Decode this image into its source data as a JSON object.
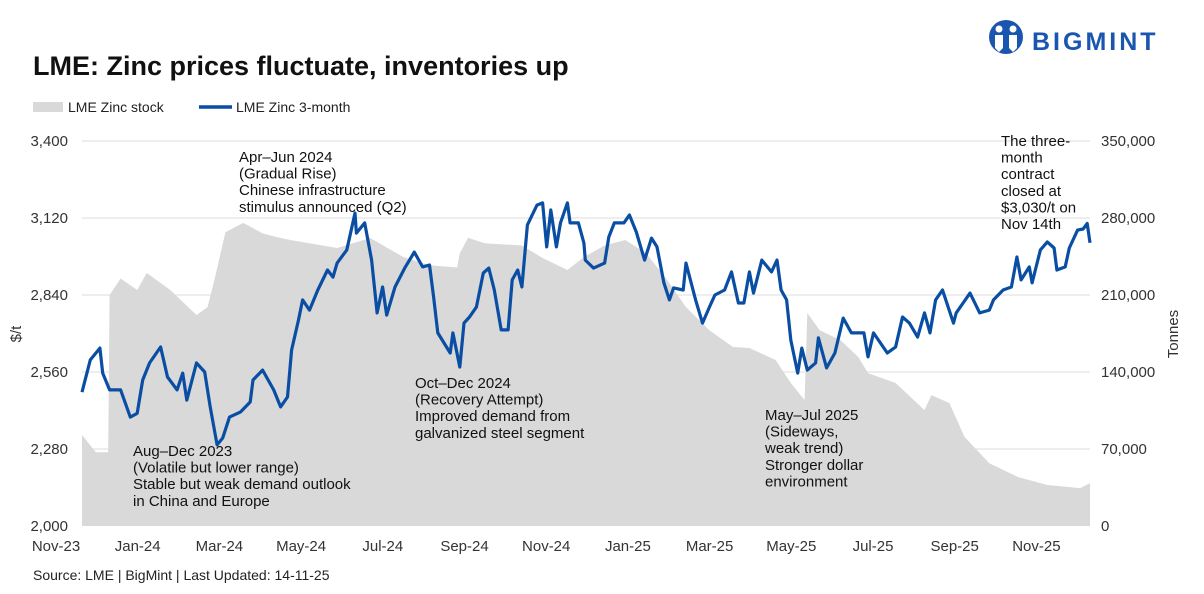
{
  "title": "LME: Zinc prices fluctuate, inventories up",
  "logo_text": "BIGMINT",
  "source": "Source: LME | BigMint | Last Updated: 14-11-25",
  "colors": {
    "stock_fill": "#d9d9d9",
    "price_line": "#0a4ea3",
    "grid": "#dedede",
    "brand": "#1a56b0"
  },
  "annotations": [
    {
      "lines": [
        "Apr–Jun 2024",
        "(Gradual Rise)",
        "Chinese infrastructure",
        "stimulus announced (Q2)"
      ]
    },
    {
      "lines": [
        "Aug–Dec 2023",
        "(Volatile but lower range)",
        "Stable but weak demand outlook",
        "in China and Europe"
      ]
    },
    {
      "lines": [
        "Oct–Dec 2024",
        "(Recovery Attempt)",
        "Improved demand from",
        "galvanized steel segment"
      ]
    },
    {
      "lines": [
        "May–Jul 2025",
        "(Sideways,",
        "weak trend)",
        "Stronger dollar",
        "environment"
      ]
    },
    {
      "lines": [
        "The three-",
        "month",
        "contract",
        "closed at",
        "$3,030/t on",
        "Nov 14th"
      ]
    }
  ],
  "chart_data": {
    "type": "line+area",
    "title": "LME: Zinc prices fluctuate, inventories up",
    "legend_position": "top-left",
    "grid": true,
    "x_tick_labels": [
      "Nov-23",
      "Jan-24",
      "Mar-24",
      "May-24",
      "Jul-24",
      "Sep-24",
      "Nov-24",
      "Jan-25",
      "Mar-25",
      "May-25",
      "Jul-25",
      "Sep-25",
      "Nov-25"
    ],
    "x_range": [
      "2023-11-14",
      "2025-11-14"
    ],
    "y_left": {
      "label": "$/t",
      "range": [
        2000,
        3400
      ],
      "ticks": [
        "2,000",
        "2,280",
        "2,560",
        "2,840",
        "3,120",
        "3,400"
      ],
      "tick_values": [
        2000,
        2280,
        2560,
        2840,
        3120,
        3400
      ]
    },
    "y_right": {
      "label": "Tonnes",
      "range": [
        0,
        350000
      ],
      "ticks": [
        "0",
        "70,000",
        "140,000",
        "210,000",
        "280,000",
        "350,000"
      ],
      "tick_values": [
        0,
        70000,
        140000,
        210000,
        280000,
        350000
      ]
    },
    "series": [
      {
        "name": "LME Zinc stock",
        "axis": "right",
        "type": "area",
        "points": [
          [
            "2023-11-14",
            82700
          ],
          [
            "2023-11-24",
            67000
          ],
          [
            "2023-12-03",
            67000
          ],
          [
            "2023-12-04",
            210000
          ],
          [
            "2023-12-12",
            225000
          ],
          [
            "2023-12-24",
            214500
          ],
          [
            "2023-12-31",
            230000
          ],
          [
            "2024-01-17",
            214500
          ],
          [
            "2024-02-05",
            191800
          ],
          [
            "2024-02-13",
            199000
          ],
          [
            "2024-02-18",
            223600
          ],
          [
            "2024-02-26",
            267000
          ],
          [
            "2024-03-10",
            275500
          ],
          [
            "2024-03-24",
            266000
          ],
          [
            "2024-04-03",
            262700
          ],
          [
            "2024-04-13",
            260000
          ],
          [
            "2024-05-17",
            252700
          ],
          [
            "2024-06-10",
            261800
          ],
          [
            "2024-07-04",
            244500
          ],
          [
            "2024-07-23",
            237000
          ],
          [
            "2024-08-12",
            235000
          ],
          [
            "2024-08-14",
            248000
          ],
          [
            "2024-08-20",
            262000
          ],
          [
            "2024-09-01",
            257000
          ],
          [
            "2024-09-28",
            255000
          ],
          [
            "2024-10-13",
            243600
          ],
          [
            "2024-10-31",
            232700
          ],
          [
            "2024-11-12",
            244500
          ],
          [
            "2024-11-27",
            255000
          ],
          [
            "2024-12-12",
            260000
          ],
          [
            "2024-12-27",
            248000
          ],
          [
            "2025-01-10",
            226000
          ],
          [
            "2025-01-25",
            199000
          ],
          [
            "2025-02-11",
            178000
          ],
          [
            "2025-02-28",
            162700
          ],
          [
            "2025-03-12",
            161800
          ],
          [
            "2025-03-31",
            150900
          ],
          [
            "2025-04-11",
            130000
          ],
          [
            "2025-04-21",
            114500
          ],
          [
            "2025-04-23",
            193600
          ],
          [
            "2025-05-02",
            178000
          ],
          [
            "2025-05-17",
            169000
          ],
          [
            "2025-05-30",
            153600
          ],
          [
            "2025-06-06",
            139000
          ],
          [
            "2025-06-26",
            130000
          ],
          [
            "2025-07-17",
            105400
          ],
          [
            "2025-07-22",
            119000
          ],
          [
            "2025-08-04",
            111800
          ],
          [
            "2025-08-15",
            81000
          ],
          [
            "2025-09-02",
            57000
          ],
          [
            "2025-09-23",
            44500
          ],
          [
            "2025-10-14",
            37300
          ],
          [
            "2025-11-07",
            34500
          ],
          [
            "2025-11-14",
            39000
          ]
        ]
      },
      {
        "name": "LME Zinc 3-month",
        "axis": "left",
        "type": "line",
        "points": [
          [
            "2023-11-14",
            2487
          ],
          [
            "2023-11-20",
            2604
          ],
          [
            "2023-11-27",
            2647
          ],
          [
            "2023-11-29",
            2556
          ],
          [
            "2023-12-04",
            2495
          ],
          [
            "2023-12-12",
            2495
          ],
          [
            "2023-12-19",
            2396
          ],
          [
            "2023-12-24",
            2410
          ],
          [
            "2023-12-28",
            2531
          ],
          [
            "2024-01-02",
            2593
          ],
          [
            "2024-01-10",
            2651
          ],
          [
            "2024-01-15",
            2542
          ],
          [
            "2024-01-22",
            2495
          ],
          [
            "2024-01-26",
            2556
          ],
          [
            "2024-01-29",
            2458
          ],
          [
            "2024-02-05",
            2593
          ],
          [
            "2024-02-11",
            2560
          ],
          [
            "2024-02-15",
            2433
          ],
          [
            "2024-02-20",
            2295
          ],
          [
            "2024-02-24",
            2320
          ],
          [
            "2024-02-29",
            2396
          ],
          [
            "2024-03-08",
            2415
          ],
          [
            "2024-03-15",
            2451
          ],
          [
            "2024-03-17",
            2531
          ],
          [
            "2024-03-24",
            2567
          ],
          [
            "2024-04-01",
            2495
          ],
          [
            "2024-04-06",
            2433
          ],
          [
            "2024-04-11",
            2469
          ],
          [
            "2024-04-14",
            2640
          ],
          [
            "2024-04-19",
            2749
          ],
          [
            "2024-04-22",
            2822
          ],
          [
            "2024-04-27",
            2785
          ],
          [
            "2024-05-03",
            2858
          ],
          [
            "2024-05-10",
            2931
          ],
          [
            "2024-05-14",
            2905
          ],
          [
            "2024-05-17",
            2956
          ],
          [
            "2024-05-24",
            3004
          ],
          [
            "2024-05-30",
            3138
          ],
          [
            "2024-05-31",
            3065
          ],
          [
            "2024-06-06",
            3102
          ],
          [
            "2024-06-11",
            2967
          ],
          [
            "2024-06-15",
            2775
          ],
          [
            "2024-06-19",
            2869
          ],
          [
            "2024-06-22",
            2767
          ],
          [
            "2024-06-28",
            2869
          ],
          [
            "2024-07-05",
            2938
          ],
          [
            "2024-07-12",
            2996
          ],
          [
            "2024-07-18",
            2942
          ],
          [
            "2024-07-23",
            2949
          ],
          [
            "2024-07-26",
            2833
          ],
          [
            "2024-07-29",
            2702
          ],
          [
            "2024-08-07",
            2629
          ],
          [
            "2024-08-09",
            2702
          ],
          [
            "2024-08-14",
            2578
          ],
          [
            "2024-08-17",
            2738
          ],
          [
            "2024-08-21",
            2760
          ],
          [
            "2024-08-26",
            2796
          ],
          [
            "2024-08-31",
            2920
          ],
          [
            "2024-09-04",
            2938
          ],
          [
            "2024-09-08",
            2858
          ],
          [
            "2024-09-13",
            2713
          ],
          [
            "2024-09-18",
            2713
          ],
          [
            "2024-09-21",
            2895
          ],
          [
            "2024-09-25",
            2931
          ],
          [
            "2024-09-28",
            2869
          ],
          [
            "2024-10-02",
            3095
          ],
          [
            "2024-10-09",
            3167
          ],
          [
            "2024-10-13",
            3175
          ],
          [
            "2024-10-16",
            3015
          ],
          [
            "2024-10-19",
            3149
          ],
          [
            "2024-10-23",
            3015
          ],
          [
            "2024-10-26",
            3102
          ],
          [
            "2024-10-31",
            3175
          ],
          [
            "2024-11-02",
            3102
          ],
          [
            "2024-11-08",
            3102
          ],
          [
            "2024-11-12",
            3029
          ],
          [
            "2024-11-13",
            2967
          ],
          [
            "2024-11-19",
            2938
          ],
          [
            "2024-11-27",
            2956
          ],
          [
            "2024-11-30",
            3051
          ],
          [
            "2024-12-04",
            3102
          ],
          [
            "2024-12-11",
            3102
          ],
          [
            "2024-12-15",
            3131
          ],
          [
            "2024-12-20",
            3069
          ],
          [
            "2024-12-26",
            2967
          ],
          [
            "2024-12-31",
            3047
          ],
          [
            "2025-01-04",
            3015
          ],
          [
            "2025-01-09",
            2884
          ],
          [
            "2025-01-13",
            2822
          ],
          [
            "2025-01-16",
            2866
          ],
          [
            "2025-01-23",
            2858
          ],
          [
            "2025-01-25",
            2956
          ],
          [
            "2025-02-01",
            2822
          ],
          [
            "2025-02-06",
            2738
          ],
          [
            "2025-02-11",
            2796
          ],
          [
            "2025-02-15",
            2840
          ],
          [
            "2025-02-22",
            2858
          ],
          [
            "2025-02-27",
            2924
          ],
          [
            "2025-03-04",
            2811
          ],
          [
            "2025-03-08",
            2811
          ],
          [
            "2025-03-12",
            2924
          ],
          [
            "2025-03-15",
            2847
          ],
          [
            "2025-03-21",
            2967
          ],
          [
            "2025-03-28",
            2924
          ],
          [
            "2025-04-01",
            2967
          ],
          [
            "2025-04-04",
            2858
          ],
          [
            "2025-04-08",
            2822
          ],
          [
            "2025-04-11",
            2676
          ],
          [
            "2025-04-16",
            2556
          ],
          [
            "2025-04-19",
            2647
          ],
          [
            "2025-04-23",
            2567
          ],
          [
            "2025-04-29",
            2593
          ],
          [
            "2025-05-01",
            2684
          ],
          [
            "2025-05-07",
            2575
          ],
          [
            "2025-05-13",
            2629
          ],
          [
            "2025-05-19",
            2756
          ],
          [
            "2025-05-25",
            2702
          ],
          [
            "2025-06-03",
            2702
          ],
          [
            "2025-06-06",
            2615
          ],
          [
            "2025-06-10",
            2702
          ],
          [
            "2025-06-20",
            2629
          ],
          [
            "2025-06-26",
            2651
          ],
          [
            "2025-07-01",
            2760
          ],
          [
            "2025-07-06",
            2738
          ],
          [
            "2025-07-12",
            2687
          ],
          [
            "2025-07-17",
            2775
          ],
          [
            "2025-07-21",
            2702
          ],
          [
            "2025-07-25",
            2822
          ],
          [
            "2025-07-30",
            2858
          ],
          [
            "2025-08-07",
            2738
          ],
          [
            "2025-08-09",
            2775
          ],
          [
            "2025-08-14",
            2811
          ],
          [
            "2025-08-19",
            2847
          ],
          [
            "2025-08-26",
            2775
          ],
          [
            "2025-09-02",
            2785
          ],
          [
            "2025-09-05",
            2822
          ],
          [
            "2025-09-12",
            2858
          ],
          [
            "2025-09-18",
            2869
          ],
          [
            "2025-09-22",
            2978
          ],
          [
            "2025-09-25",
            2895
          ],
          [
            "2025-10-01",
            2942
          ],
          [
            "2025-10-03",
            2884
          ],
          [
            "2025-10-09",
            3004
          ],
          [
            "2025-10-14",
            3033
          ],
          [
            "2025-10-19",
            3011
          ],
          [
            "2025-10-21",
            2931
          ],
          [
            "2025-10-27",
            2942
          ],
          [
            "2025-10-30",
            3011
          ],
          [
            "2025-11-05",
            3076
          ],
          [
            "2025-11-09",
            3080
          ],
          [
            "2025-11-12",
            3100
          ],
          [
            "2025-11-14",
            3030
          ]
        ]
      }
    ]
  }
}
